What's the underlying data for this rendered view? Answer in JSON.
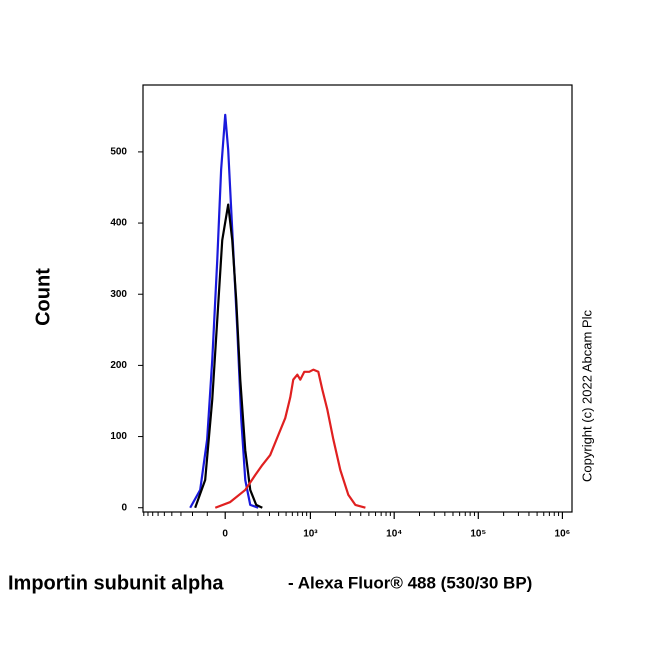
{
  "chart_data": {
    "type": "line",
    "xlabel": [
      "Importin subunit alpha",
      "- Alexa Fluor® 488 (530/30 BP)"
    ],
    "ylabel": "Count",
    "annotation": "Copyright (c) 2022 Abcam Plc",
    "xscale": "biexponential",
    "xlim": [
      -920,
      1300000
    ],
    "ylim": [
      -6,
      594
    ],
    "yticks": [
      0,
      100,
      200,
      300,
      400,
      500
    ],
    "xticks": [
      0,
      {
        "value": 1000,
        "label": "10³"
      },
      {
        "value": 10000,
        "label": "10⁴"
      },
      {
        "value": 100000,
        "label": "10⁵"
      },
      {
        "value": 1000000,
        "label": "10⁶"
      }
    ],
    "xminorticks": [
      -900,
      -800,
      -700,
      -600,
      -500,
      -400,
      -300,
      -200,
      -100,
      100,
      200,
      300,
      400,
      500,
      600,
      700,
      800,
      900,
      2000,
      3000,
      4000,
      5000,
      6000,
      7000,
      8000,
      9000,
      20000,
      30000,
      40000,
      50000,
      60000,
      70000,
      80000,
      90000,
      200000,
      300000,
      400000,
      500000,
      600000,
      700000,
      800000,
      900000
    ],
    "series": [
      {
        "color": "#1a1adc",
        "x": [
          -218,
          -145,
          -101,
          -71,
          -43,
          -22,
          0,
          16,
          38,
          66,
          89,
          113,
          145,
          202
        ],
        "values": [
          0,
          25,
          96,
          208,
          348,
          475,
          552,
          503,
          390,
          250,
          124,
          39,
          4,
          0
        ]
      },
      {
        "color": "#000000",
        "x": [
          -180,
          -113,
          -71,
          -43,
          -16,
          16,
          38,
          60,
          83,
          113,
          145,
          187,
          235
        ],
        "values": [
          0,
          39,
          152,
          264,
          376,
          426,
          376,
          292,
          180,
          81,
          25,
          4,
          0
        ]
      },
      {
        "color": "#e02020",
        "x": [
          -54,
          27,
          113,
          180,
          235,
          307,
          396,
          488,
          565,
          616,
          692,
          753,
          843,
          968,
          1084,
          1245,
          1392,
          1597,
          1886,
          2285,
          2848,
          3450,
          4547
        ],
        "values": [
          0,
          8,
          25,
          46,
          60,
          74,
          102,
          126,
          155,
          180,
          187,
          180,
          191,
          191,
          194,
          191,
          166,
          138,
          96,
          53,
          18,
          4,
          0
        ]
      }
    ]
  }
}
